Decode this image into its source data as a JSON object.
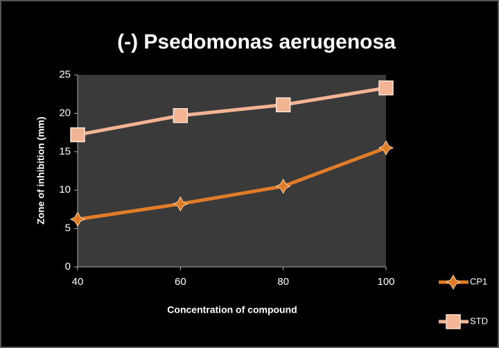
{
  "chart_data": {
    "type": "line",
    "title": "(-) Psedomonas aerugenosa",
    "x_label": "Concentration of compound",
    "y_label": "Zone of inhibition (mm)",
    "x": [
      40,
      60,
      80,
      100
    ],
    "xlim": [
      40,
      100
    ],
    "xticks": [
      40,
      60,
      80,
      100
    ],
    "ylim": [
      0,
      25
    ],
    "yticks": [
      0,
      5,
      10,
      15,
      20,
      25
    ],
    "legend": "right",
    "series": [
      {
        "name": "CP1",
        "color": "#e07b28",
        "values": [
          6.2,
          8.2,
          10.5,
          15.5
        ]
      },
      {
        "name": "STD",
        "color": "#f2b493",
        "values": [
          17.2,
          19.7,
          21.1,
          23.3
        ]
      }
    ]
  }
}
